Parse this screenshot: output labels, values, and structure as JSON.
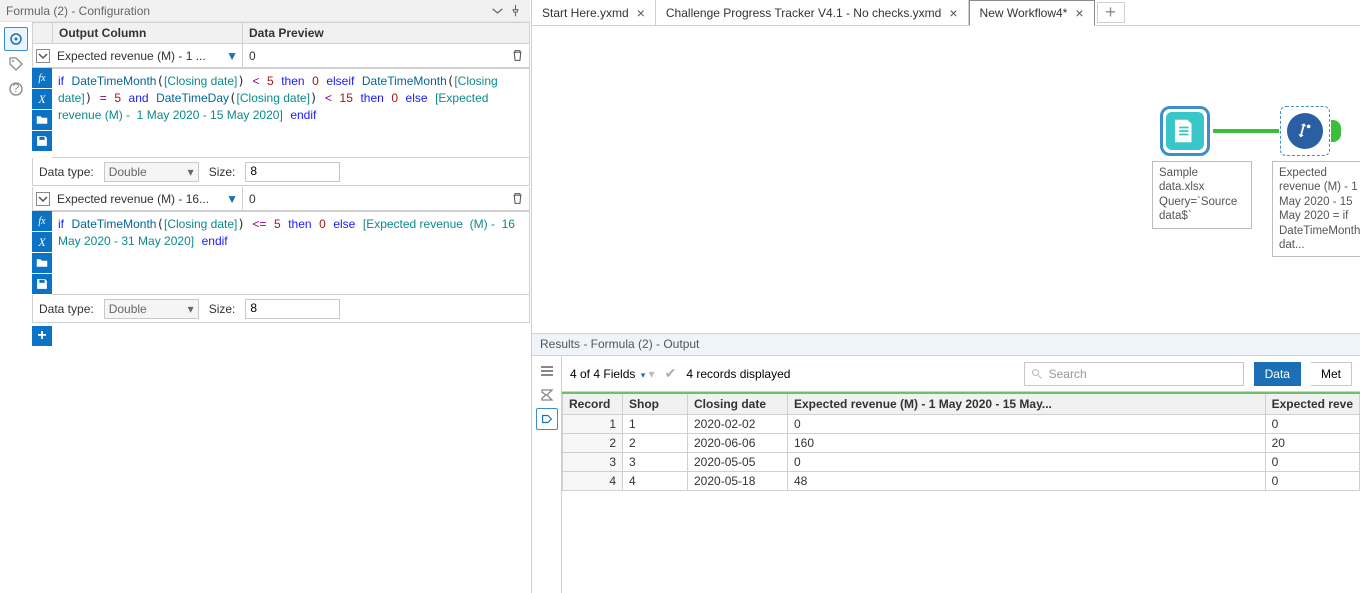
{
  "config": {
    "title": "Formula (2) - Configuration",
    "columns": {
      "output": "Output Column",
      "preview": "Data Preview"
    },
    "expressions": [
      {
        "field_label": "Expected revenue (M) - 1 ...",
        "preview": "0",
        "data_type_label": "Data type:",
        "data_type": "Double",
        "size_label": "Size:",
        "size": "8"
      },
      {
        "field_label": "Expected revenue (M) - 16...",
        "preview": "0",
        "data_type_label": "Data type:",
        "data_type": "Double",
        "size_label": "Size:",
        "size": "8"
      }
    ]
  },
  "tabs": [
    {
      "label": "Start Here.yxmd",
      "closable": true,
      "active": false
    },
    {
      "label": "Challenge Progress Tracker V4.1 - No checks.yxmd",
      "closable": true,
      "active": false
    },
    {
      "label": "New Workflow4*",
      "closable": true,
      "active": true
    }
  ],
  "canvas": {
    "input_annot": "Sample data.xlsx\nQuery=`Source data$`",
    "formula_annot": "Expected revenue (M) -  1 May 2020 - 15 May 2020 = if DateTimeMonth([Closing dat..."
  },
  "results": {
    "header": "Results - Formula (2) - Output",
    "fields_summary": "4 of 4 Fields",
    "records_summary": "4 records displayed",
    "search_placeholder": "Search",
    "view_data": "Data",
    "view_meta": "Met",
    "columns": [
      "Record",
      "Shop",
      "Closing date",
      "Expected revenue (M) -  1 May 2020 - 15 May...",
      "Expected reve"
    ],
    "rows": [
      [
        "1",
        "1",
        "2020-02-02",
        "0",
        "0"
      ],
      [
        "2",
        "2",
        "2020-06-06",
        "160",
        "20"
      ],
      [
        "3",
        "3",
        "2020-05-05",
        "0",
        "0"
      ],
      [
        "4",
        "4",
        "2020-05-18",
        "48",
        "0"
      ]
    ]
  }
}
